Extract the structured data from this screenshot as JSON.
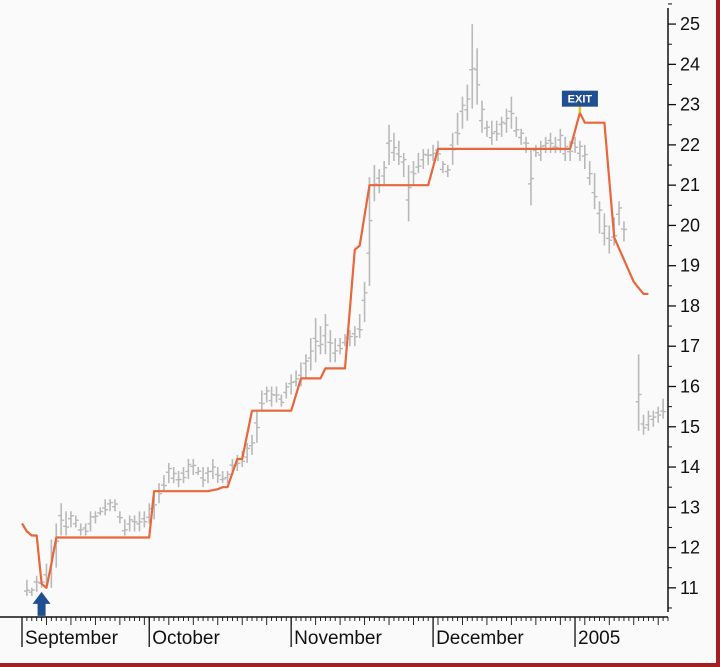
{
  "colors": {
    "background": "#fafafa",
    "border": "#a31e22",
    "price_bars": "#b9b9b9",
    "stop_line": "#e8663a",
    "axis": "#111111",
    "marker": "#1f4e91",
    "exit_tick": "#e7c21a"
  },
  "chart_data": {
    "type": "line",
    "y_axis": {
      "position": "right",
      "range": [
        10.4,
        25.3
      ],
      "ticks": [
        11,
        12,
        13,
        14,
        15,
        16,
        17,
        18,
        19,
        20,
        21,
        22,
        23,
        24,
        25
      ]
    },
    "x_axis": {
      "labels": [
        "September",
        "October",
        "November",
        "December",
        "2005"
      ],
      "range": [
        0,
        132
      ],
      "label_positions": [
        0,
        26,
        55,
        84,
        113
      ]
    },
    "grid": false,
    "price_bars": {
      "style": "ohlc",
      "bars": [
        [
          1,
          10.8,
          11.2
        ],
        [
          2,
          10.8,
          11.0
        ],
        [
          3,
          10.9,
          11.3
        ],
        [
          4,
          11.0,
          11.3
        ],
        [
          5,
          11.0,
          11.6
        ],
        [
          6,
          11.0,
          12.2
        ],
        [
          7,
          11.5,
          12.6
        ],
        [
          8,
          12.3,
          13.1
        ],
        [
          9,
          12.3,
          12.9
        ],
        [
          10,
          12.5,
          12.9
        ],
        [
          11,
          12.5,
          12.8
        ],
        [
          12,
          12.3,
          12.6
        ],
        [
          13,
          12.3,
          12.6
        ],
        [
          14,
          12.4,
          12.9
        ],
        [
          15,
          12.6,
          12.9
        ],
        [
          16,
          12.8,
          13.0
        ],
        [
          17,
          12.8,
          13.2
        ],
        [
          18,
          12.9,
          13.2
        ],
        [
          19,
          12.9,
          13.2
        ],
        [
          20,
          12.6,
          12.9
        ],
        [
          21,
          12.3,
          12.7
        ],
        [
          22,
          12.4,
          12.8
        ],
        [
          23,
          12.4,
          12.8
        ],
        [
          24,
          12.4,
          12.9
        ],
        [
          25,
          12.5,
          12.9
        ],
        [
          26,
          12.6,
          13.1
        ],
        [
          27,
          12.7,
          13.3
        ],
        [
          28,
          13.1,
          13.6
        ],
        [
          29,
          13.4,
          13.8
        ],
        [
          30,
          13.6,
          14.1
        ],
        [
          31,
          13.6,
          14.0
        ],
        [
          32,
          13.5,
          13.9
        ],
        [
          33,
          13.6,
          14.0
        ],
        [
          34,
          13.7,
          14.2
        ],
        [
          35,
          13.8,
          14.2
        ],
        [
          36,
          13.8,
          14.0
        ],
        [
          37,
          13.5,
          14.0
        ],
        [
          38,
          13.6,
          14.0
        ],
        [
          39,
          13.7,
          14.2
        ],
        [
          40,
          13.6,
          14.0
        ],
        [
          41,
          13.6,
          13.9
        ],
        [
          42,
          13.6,
          13.9
        ],
        [
          43,
          13.8,
          14.2
        ],
        [
          44,
          13.9,
          14.3
        ],
        [
          45,
          14.0,
          14.4
        ],
        [
          46,
          14.1,
          14.6
        ],
        [
          47,
          14.3,
          14.8
        ],
        [
          48,
          14.6,
          15.4
        ],
        [
          49,
          15.4,
          15.9
        ],
        [
          50,
          15.6,
          16.0
        ],
        [
          51,
          15.5,
          16.0
        ],
        [
          52,
          15.6,
          16.0
        ],
        [
          53,
          15.5,
          15.8
        ],
        [
          54,
          15.7,
          16.1
        ],
        [
          55,
          15.8,
          16.3
        ],
        [
          56,
          16.0,
          16.4
        ],
        [
          57,
          16.0,
          16.6
        ],
        [
          58,
          16.2,
          16.8
        ],
        [
          59,
          16.4,
          17.2
        ],
        [
          60,
          16.6,
          17.7
        ],
        [
          61,
          16.8,
          17.5
        ],
        [
          62,
          16.8,
          17.8
        ],
        [
          63,
          16.6,
          17.4
        ],
        [
          64,
          16.6,
          17.2
        ],
        [
          65,
          16.8,
          17.2
        ],
        [
          66,
          17.0,
          17.3
        ],
        [
          67,
          17.0,
          17.4
        ],
        [
          68,
          17.0,
          17.5
        ],
        [
          69,
          17.2,
          17.8
        ],
        [
          70,
          17.6,
          18.6
        ],
        [
          71,
          18.5,
          21.2
        ],
        [
          72,
          20.6,
          21.5
        ],
        [
          73,
          20.8,
          21.4
        ],
        [
          74,
          21.0,
          21.6
        ],
        [
          75,
          21.5,
          22.5
        ],
        [
          76,
          21.6,
          22.3
        ],
        [
          77,
          21.5,
          22.1
        ],
        [
          78,
          21.2,
          21.8
        ],
        [
          79,
          20.1,
          21.5
        ],
        [
          80,
          21.0,
          21.6
        ],
        [
          81,
          21.3,
          21.8
        ],
        [
          82,
          21.4,
          21.9
        ],
        [
          83,
          21.5,
          21.9
        ],
        [
          84,
          21.6,
          22.0
        ],
        [
          85,
          21.6,
          22.1
        ],
        [
          86,
          21.3,
          21.6
        ],
        [
          87,
          21.2,
          21.5
        ],
        [
          88,
          21.5,
          22.3
        ],
        [
          89,
          22.0,
          22.8
        ],
        [
          90,
          22.4,
          23.2
        ],
        [
          91,
          22.6,
          23.5
        ],
        [
          92,
          22.9,
          25.0
        ],
        [
          93,
          23.0,
          24.4
        ],
        [
          94,
          22.3,
          23.1
        ],
        [
          95,
          22.2,
          22.6
        ],
        [
          96,
          22.0,
          22.6
        ],
        [
          97,
          22.1,
          22.6
        ],
        [
          98,
          22.2,
          22.7
        ],
        [
          99,
          22.3,
          22.9
        ],
        [
          100,
          22.4,
          23.2
        ],
        [
          101,
          22.2,
          22.7
        ],
        [
          102,
          22.0,
          22.4
        ],
        [
          103,
          21.8,
          22.2
        ],
        [
          104,
          20.5,
          21.9
        ],
        [
          105,
          21.7,
          22.0
        ],
        [
          106,
          21.6,
          22.1
        ],
        [
          107,
          21.8,
          22.2
        ],
        [
          108,
          21.8,
          22.3
        ],
        [
          109,
          21.8,
          22.2
        ],
        [
          110,
          21.8,
          22.4
        ],
        [
          111,
          21.6,
          22.2
        ],
        [
          112,
          21.6,
          22.1
        ],
        [
          113,
          21.8,
          22.2
        ],
        [
          114,
          21.6,
          22.1
        ],
        [
          115,
          21.4,
          22.0
        ],
        [
          116,
          21.0,
          21.6
        ],
        [
          117,
          20.4,
          21.3
        ],
        [
          118,
          19.8,
          20.6
        ],
        [
          119,
          19.5,
          20.3
        ],
        [
          120,
          19.3,
          20.0
        ],
        [
          121,
          19.5,
          20.2
        ],
        [
          122,
          20.0,
          20.6
        ],
        [
          123,
          19.6,
          20.1
        ],
        [
          126,
          14.9,
          16.8
        ],
        [
          127,
          14.8,
          15.3
        ],
        [
          128,
          14.9,
          15.4
        ],
        [
          129,
          15.0,
          15.4
        ],
        [
          130,
          15.1,
          15.5
        ],
        [
          131,
          15.2,
          15.7
        ]
      ]
    },
    "stop_line": {
      "points": [
        [
          0,
          12.6
        ],
        [
          1,
          12.4
        ],
        [
          2,
          12.3
        ],
        [
          3,
          12.3
        ],
        [
          4,
          11.1
        ],
        [
          5,
          11.0
        ],
        [
          6,
          11.6
        ],
        [
          7,
          12.25
        ],
        [
          26,
          12.25
        ],
        [
          27,
          13.4
        ],
        [
          38,
          13.4
        ],
        [
          40,
          13.45
        ],
        [
          41,
          13.5
        ],
        [
          42,
          13.5
        ],
        [
          44,
          14.2
        ],
        [
          45,
          14.2
        ],
        [
          47,
          15.4
        ],
        [
          55,
          15.4
        ],
        [
          57,
          16.2
        ],
        [
          61,
          16.2
        ],
        [
          62,
          16.45
        ],
        [
          66,
          16.45
        ],
        [
          68,
          19.4
        ],
        [
          69,
          19.5
        ],
        [
          71,
          21.0
        ],
        [
          83,
          21.0
        ],
        [
          85,
          21.9
        ],
        [
          112,
          21.9
        ],
        [
          114,
          22.8
        ],
        [
          115,
          22.55
        ],
        [
          119,
          22.55
        ],
        [
          121,
          19.7
        ],
        [
          125,
          18.6
        ],
        [
          127,
          18.3
        ],
        [
          128,
          18.3
        ]
      ]
    },
    "markers": [
      {
        "type": "entry-arrow",
        "x": 4,
        "y": 11.0
      },
      {
        "type": "exit-flag",
        "label": "EXIT",
        "x": 114,
        "y": 22.8
      }
    ]
  }
}
